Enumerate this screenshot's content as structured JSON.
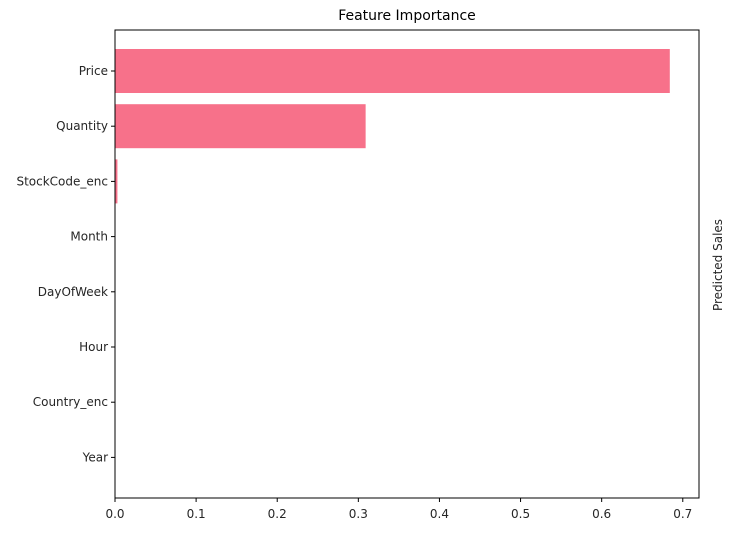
{
  "chart_data": {
    "type": "bar",
    "orientation": "horizontal",
    "title": "Feature Importance",
    "xlabel": "",
    "ylabel": "",
    "categories": [
      "Price",
      "Quantity",
      "StockCode_enc",
      "Month",
      "DayOfWeek",
      "Hour",
      "Country_enc",
      "Year"
    ],
    "values": [
      0.684,
      0.309,
      0.003,
      0.0,
      0.0,
      0.0,
      0.0,
      0.0
    ],
    "xlim": [
      0,
      0.72
    ],
    "xticks": [
      "0.0",
      "0.1",
      "0.2",
      "0.3",
      "0.4",
      "0.5",
      "0.6",
      "0.7"
    ],
    "bar_color": "#f7718a",
    "grid": false,
    "side_label": "Predicted Sales"
  }
}
